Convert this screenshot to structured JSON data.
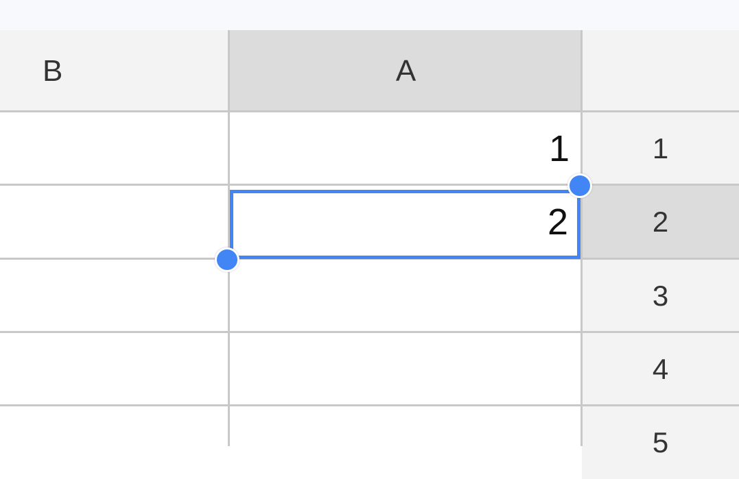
{
  "columns": [
    {
      "label": "B"
    },
    {
      "label": "A"
    }
  ],
  "rows": [
    {
      "label": "1",
      "a": "1"
    },
    {
      "label": "2",
      "a": "2"
    },
    {
      "label": "3",
      "a": ""
    },
    {
      "label": "4",
      "a": ""
    },
    {
      "label": "5",
      "a": ""
    }
  ],
  "selection": {
    "cell": "A2"
  },
  "colors": {
    "selection": "#4285f4",
    "header": "#f3f3f3",
    "header_selected": "#dcdcdc",
    "grid": "#c8c8c8"
  }
}
